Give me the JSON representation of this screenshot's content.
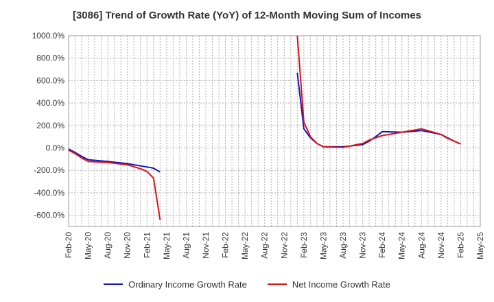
{
  "chart_data": {
    "type": "line",
    "title": "[3086]  Trend of Growth Rate (YoY) of 12-Month Moving Sum of Incomes",
    "xlabel": "",
    "ylabel": "",
    "ylim": [
      -700,
      1000
    ],
    "yticks": [
      1000,
      800,
      600,
      400,
      200,
      0,
      -200,
      -400,
      -600
    ],
    "ytick_labels": [
      "1000.0%",
      "800.0%",
      "600.0%",
      "400.0%",
      "200.0%",
      "0.0%",
      "-200.0%",
      "-400.0%",
      "-600.0%"
    ],
    "x_categories": [
      "Feb-20",
      "May-20",
      "Aug-20",
      "Nov-20",
      "Feb-21",
      "May-21",
      "Aug-21",
      "Nov-21",
      "Feb-22",
      "May-22",
      "Aug-22",
      "Nov-22",
      "Feb-23",
      "May-23",
      "Aug-23",
      "Nov-23",
      "Feb-24",
      "May-24",
      "Aug-24",
      "Nov-24",
      "Feb-25",
      "May-25"
    ],
    "grid": true,
    "legend_position": "bottom",
    "series": [
      {
        "name": "Ordinary Income Growth Rate",
        "color": "#1515c0",
        "segments": [
          [
            [
              "Feb-20",
              -10
            ],
            [
              "Mar-20",
              -40
            ],
            [
              "Apr-20",
              -75
            ],
            [
              "May-20",
              -105
            ],
            [
              "Aug-20",
              -120
            ],
            [
              "Nov-20",
              -140
            ],
            [
              "Feb-21",
              -170
            ],
            [
              "Mar-21",
              -180
            ],
            [
              "Apr-21",
              -215
            ]
          ],
          [
            [
              "Jan-23",
              670
            ],
            [
              "Feb-23",
              170
            ],
            [
              "Mar-23",
              90
            ],
            [
              "Apr-23",
              40
            ],
            [
              "May-23",
              10
            ],
            [
              "Aug-23",
              10
            ],
            [
              "Nov-23",
              30
            ],
            [
              "Dec-23",
              60
            ],
            [
              "Jan-24",
              100
            ],
            [
              "Feb-24",
              145
            ],
            [
              "May-24",
              140
            ],
            [
              "Aug-24",
              155
            ],
            [
              "Nov-24",
              120
            ],
            [
              "Dec-24",
              90
            ],
            [
              "Jan-25",
              60
            ],
            [
              "Feb-25",
              35
            ]
          ]
        ]
      },
      {
        "name": "Net Income Growth Rate",
        "color": "#e01010",
        "segments": [
          [
            [
              "Feb-20",
              -20
            ],
            [
              "Mar-20",
              -50
            ],
            [
              "Apr-20",
              -90
            ],
            [
              "May-20",
              -120
            ],
            [
              "Aug-20",
              -130
            ],
            [
              "Nov-20",
              -150
            ],
            [
              "Jan-21",
              -185
            ],
            [
              "Feb-21",
              -210
            ],
            [
              "Mar-21",
              -270
            ],
            [
              "Apr-21",
              -640
            ]
          ],
          [
            [
              "Jan-23",
              1000
            ],
            [
              "Feb-23",
              230
            ],
            [
              "Mar-23",
              100
            ],
            [
              "Apr-23",
              40
            ],
            [
              "May-23",
              10
            ],
            [
              "Aug-23",
              5
            ],
            [
              "Nov-23",
              40
            ],
            [
              "Dec-23",
              70
            ],
            [
              "Jan-24",
              90
            ],
            [
              "Feb-24",
              110
            ],
            [
              "May-24",
              140
            ],
            [
              "Aug-24",
              170
            ],
            [
              "Nov-24",
              120
            ],
            [
              "Dec-24",
              85
            ],
            [
              "Jan-25",
              60
            ],
            [
              "Feb-25",
              35
            ]
          ]
        ]
      }
    ]
  }
}
